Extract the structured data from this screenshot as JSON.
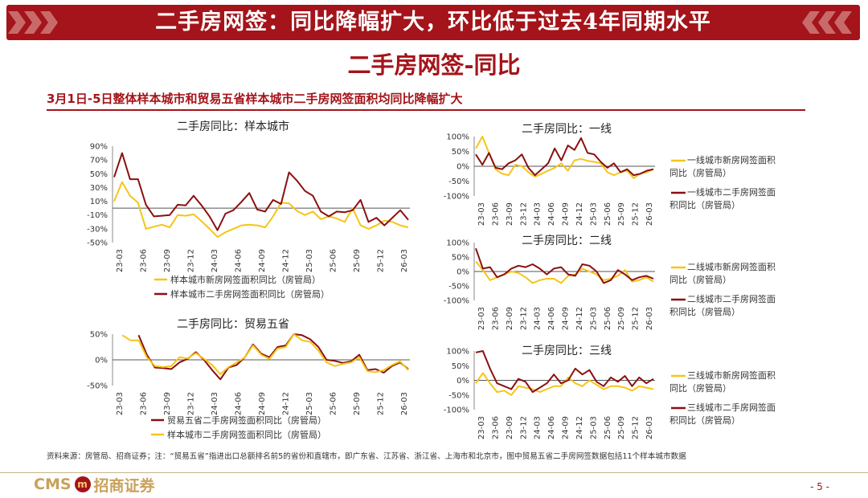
{
  "header": {
    "title": "二手房网签：同比降幅扩大，环比低于过去4年同期水平"
  },
  "section": {
    "subtitle": "二手房网签-同比",
    "headline": "3月1日-5日整体样本城市和贸易五省样本城市二手房网签面积均同比降幅扩大"
  },
  "colors": {
    "brand": "#a4141a",
    "yellow": "#f5c518",
    "darkred": "#8b1010"
  },
  "chart_data": [
    {
      "id": "c1",
      "type": "line",
      "title": "二手房同比：样本城市",
      "yticks": [
        "90%",
        "70%",
        "50%",
        "30%",
        "10%",
        "-10%",
        "-30%",
        "-50%"
      ],
      "ylim": [
        -50,
        90
      ],
      "xticks": [
        "23-03",
        "23-06",
        "23-09",
        "23-12",
        "24-03",
        "24-06",
        "24-09",
        "24-12",
        "25-03",
        "25-06",
        "25-09",
        "25-12",
        "26-03"
      ],
      "series": [
        {
          "name": "样本城市新房网签面积同比（房管局）",
          "color": "#f5c518",
          "values": [
            10,
            38,
            18,
            8,
            -30,
            -27,
            -24,
            -28,
            -10,
            -11,
            -9,
            -19,
            -30,
            -42,
            -35,
            -30,
            -25,
            -24,
            -25,
            -28,
            -12,
            8,
            7,
            -4,
            -10,
            -5,
            -16,
            -12,
            -15,
            -20,
            0,
            -25,
            -30,
            -25,
            -18,
            -20,
            -25,
            -28
          ]
        },
        {
          "name": "样本城市二手房网签面积同比（房管局）",
          "color": "#8b1010",
          "values": [
            45,
            80,
            42,
            42,
            5,
            -12,
            -11,
            -10,
            5,
            4,
            18,
            4,
            -12,
            -32,
            -8,
            -3,
            9,
            22,
            -2,
            -5,
            12,
            6,
            52,
            40,
            25,
            18,
            -5,
            -12,
            -5,
            -6,
            -3,
            12,
            -20,
            -14,
            -25,
            -14,
            -3,
            -17
          ]
        }
      ]
    },
    {
      "id": "c2",
      "type": "line",
      "title": "二手房同比：贸易五省",
      "yticks": [
        "50%",
        "0%",
        "-50%"
      ],
      "ylim": [
        -50,
        50
      ],
      "xticks": [
        "23-03",
        "23-06",
        "23-09",
        "23-12",
        "24-03",
        "24-06",
        "24-09",
        "24-12",
        "25-03",
        "25-06",
        "25-09",
        "25-12",
        "26-03"
      ],
      "series": [
        {
          "name": "贸易五省二手房网签面积同比（房管局）",
          "color": "#8b1010",
          "values": [
            null,
            null,
            null,
            48,
            10,
            -15,
            -16,
            -18,
            -5,
            2,
            15,
            0,
            -20,
            -38,
            -15,
            -10,
            5,
            30,
            12,
            5,
            25,
            28,
            52,
            48,
            40,
            25,
            0,
            -2,
            -6,
            -3,
            10,
            -20,
            -18,
            -25,
            -12,
            -5,
            -18
          ]
        },
        {
          "name": "样本城市二手房网签面积同比（房管局）",
          "color": "#f5c518",
          "values": [
            null,
            48,
            38,
            38,
            5,
            -12,
            -14,
            -12,
            5,
            3,
            13,
            2,
            -10,
            -28,
            -14,
            -5,
            5,
            28,
            10,
            2,
            22,
            25,
            52,
            38,
            35,
            18,
            -5,
            -12,
            -8,
            -5,
            5,
            -22,
            -24,
            -20,
            -10,
            -3,
            -20
          ]
        }
      ]
    },
    {
      "id": "c3",
      "type": "line",
      "title": "二手房同比：一线",
      "yticks": [
        "100%",
        "50%",
        "0%",
        "-50%",
        "-100%"
      ],
      "ylim": [
        -100,
        100
      ],
      "xticks": [
        "23-03",
        "23-06",
        "23-09",
        "23-12",
        "24-03",
        "24-06",
        "24-09",
        "24-12",
        "25-03",
        "25-06",
        "25-09",
        "25-12",
        "26-03"
      ],
      "series": [
        {
          "name": "一线城市新房网签面积同比（房管局）",
          "color": "#f5c518",
          "values": [
            60,
            100,
            45,
            -10,
            -25,
            -30,
            5,
            0,
            -20,
            -35,
            -25,
            -15,
            -5,
            10,
            -15,
            20,
            25,
            18,
            15,
            10,
            -20,
            -30,
            -20,
            -15,
            -40,
            -25,
            -20,
            -10
          ]
        },
        {
          "name": "一线城市二手房网签面积同比（房管局）",
          "color": "#8b1010",
          "values": [
            40,
            5,
            45,
            -5,
            -10,
            10,
            20,
            40,
            -5,
            -30,
            -10,
            10,
            60,
            20,
            70,
            55,
            95,
            45,
            40,
            15,
            -5,
            10,
            -20,
            -10,
            -30,
            -25,
            -15,
            -10
          ]
        }
      ]
    },
    {
      "id": "c4",
      "type": "line",
      "title": "二手房同比：二线",
      "yticks": [
        "100%",
        "50%",
        "0%",
        "-50%",
        "-100%"
      ],
      "ylim": [
        -100,
        100
      ],
      "xticks": [
        "23-03",
        "23-06",
        "23-09",
        "23-12",
        "24-03",
        "24-06",
        "24-09",
        "24-12",
        "25-03",
        "25-06",
        "25-09",
        "25-12",
        "26-03"
      ],
      "series": [
        {
          "name": "二线城市新房网签面积同比（房管局）",
          "color": "#f5c518",
          "values": [
            35,
            5,
            -30,
            -20,
            -10,
            0,
            -5,
            -20,
            -40,
            -30,
            -25,
            -25,
            -40,
            -15,
            -10,
            10,
            0,
            -10,
            -30,
            -25,
            -15,
            5,
            -35,
            -30,
            -20,
            -35
          ]
        },
        {
          "name": "二线城市二手房网签面积同比（房管局）",
          "color": "#8b1010",
          "values": [
            80,
            10,
            15,
            -20,
            -10,
            10,
            20,
            15,
            25,
            10,
            -10,
            10,
            15,
            -10,
            -15,
            25,
            20,
            0,
            -40,
            -30,
            5,
            -10,
            -30,
            -20,
            -15,
            -25
          ]
        }
      ]
    },
    {
      "id": "c5",
      "type": "line",
      "title": "二手房同比：三线",
      "yticks": [
        "100%",
        "50%",
        "0%",
        "-50%",
        "-100%"
      ],
      "ylim": [
        -100,
        100
      ],
      "xticks": [
        "23-03",
        "23-06",
        "23-09",
        "23-12",
        "24-03",
        "24-06",
        "24-09",
        "24-12",
        "25-03",
        "25-06",
        "25-09",
        "25-12",
        "26-03"
      ],
      "series": [
        {
          "name": "三线城市新房网签面积同比（房管局）",
          "color": "#f5c518",
          "values": [
            -10,
            25,
            -10,
            -40,
            -35,
            -50,
            -20,
            -25,
            -30,
            -40,
            -30,
            -20,
            -20,
            10,
            -10,
            -20,
            0,
            -15,
            -30,
            -20,
            -20,
            -25,
            -35,
            -20,
            -25,
            -30
          ]
        },
        {
          "name": "三线城市二手房网签面积同比（房管局）",
          "color": "#8b1010",
          "values": [
            95,
            100,
            40,
            -10,
            -20,
            -30,
            5,
            -5,
            -40,
            -25,
            -10,
            20,
            -10,
            0,
            40,
            20,
            35,
            -5,
            -20,
            10,
            -5,
            15,
            -20,
            10,
            -10,
            5
          ]
        }
      ]
    }
  ],
  "footer": {
    "source": "资料来源：房管局、招商证券；注：“贸易五省”指进出口总额排名前5的省份和直辖市，即广东省、江苏省、浙江省、上海市和北京市，图中贸易五省二手房网签数据包括11个样本城市数据",
    "logo_cms": "CMS",
    "logo_mark": "m",
    "logo_name": "招商证券",
    "page": "- 5 -"
  }
}
